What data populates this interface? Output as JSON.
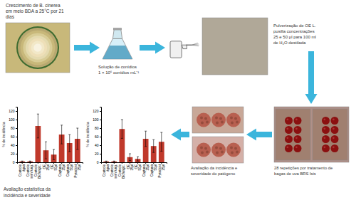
{
  "chart_data": [
    {
      "type": "bar",
      "categories": [
        "Controle\nágua",
        "Controle\nsem fung.",
        "Controle\nBiofungic.",
        "OE\n25μl",
        "OE\n50μl",
        "Captana\n25μl",
        "Captana\n50μl",
        "Pyraclost\n25μl"
      ],
      "values": [
        2,
        2,
        85,
        28,
        18,
        65,
        45,
        55
      ],
      "errors": [
        1,
        1,
        28,
        20,
        12,
        22,
        20,
        25
      ],
      "color": "#C0392B",
      "y_label": "% de incidência",
      "ylim": [
        0,
        130
      ],
      "yticks": [
        0,
        20,
        40,
        60,
        80,
        100,
        120
      ],
      "annotations": [
        "Crescimento de B. cinerea",
        "em meio BDA a 25°C por 21",
        "dias",
        "Solução de conídios",
        "1 × 10⁶ conídios mL⁻¹",
        "Pulverização de OE L.",
        "pusilla concentrações",
        "25 e 50 μl para 100 ml",
        "de H₂O destilada",
        "28 repetições por tratamento de",
        "bagas de uva BRS Isis",
        "Avaliação da incidência e",
        "severidade do patógeno",
        "Avaliação estatística da",
        "incidência e severidade"
      ]
    },
    {
      "type": "bar",
      "categories": [
        "Controle\nágua",
        "Controle\nsem fung.",
        "Controle\nBiofungic.",
        "OE\n25μl",
        "OE\n50μl",
        "Captana\n25μl",
        "Captana\n50μl",
        "Pyraclost\n25μl"
      ],
      "values": [
        2,
        2,
        78,
        12,
        8,
        55,
        38,
        48
      ],
      "errors": [
        1,
        1,
        22,
        8,
        5,
        18,
        15,
        22
      ],
      "color": "#C0392B",
      "y_label": "% de incidência",
      "ylim": [
        0,
        130
      ],
      "yticks": [
        0,
        20,
        40,
        60,
        80,
        100,
        120
      ]
    }
  ]
}
